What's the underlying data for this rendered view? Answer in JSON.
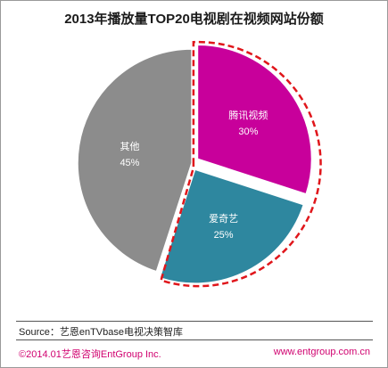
{
  "chart_data": {
    "type": "pie",
    "title": "2013年播放量TOP20电视剧在视频网站份额",
    "slices": [
      {
        "name": "腾讯视频",
        "value": 30,
        "value_label": "30%",
        "color": "#c8009b",
        "exploded": true
      },
      {
        "name": "爱奇艺",
        "value": 25,
        "value_label": "25%",
        "color": "#2e879f",
        "exploded": true
      },
      {
        "name": "其他",
        "value": 45,
        "value_label": "45%",
        "color": "#8c8c8c",
        "exploded": false
      }
    ],
    "highlight_outline_color": "#e0161b"
  },
  "footer": {
    "source": "Source：艺恩enTVbase电视决策智库",
    "copyright": "©2014.01艺恩咨询EntGroup Inc.",
    "website": "www.entgroup.com.cn"
  }
}
